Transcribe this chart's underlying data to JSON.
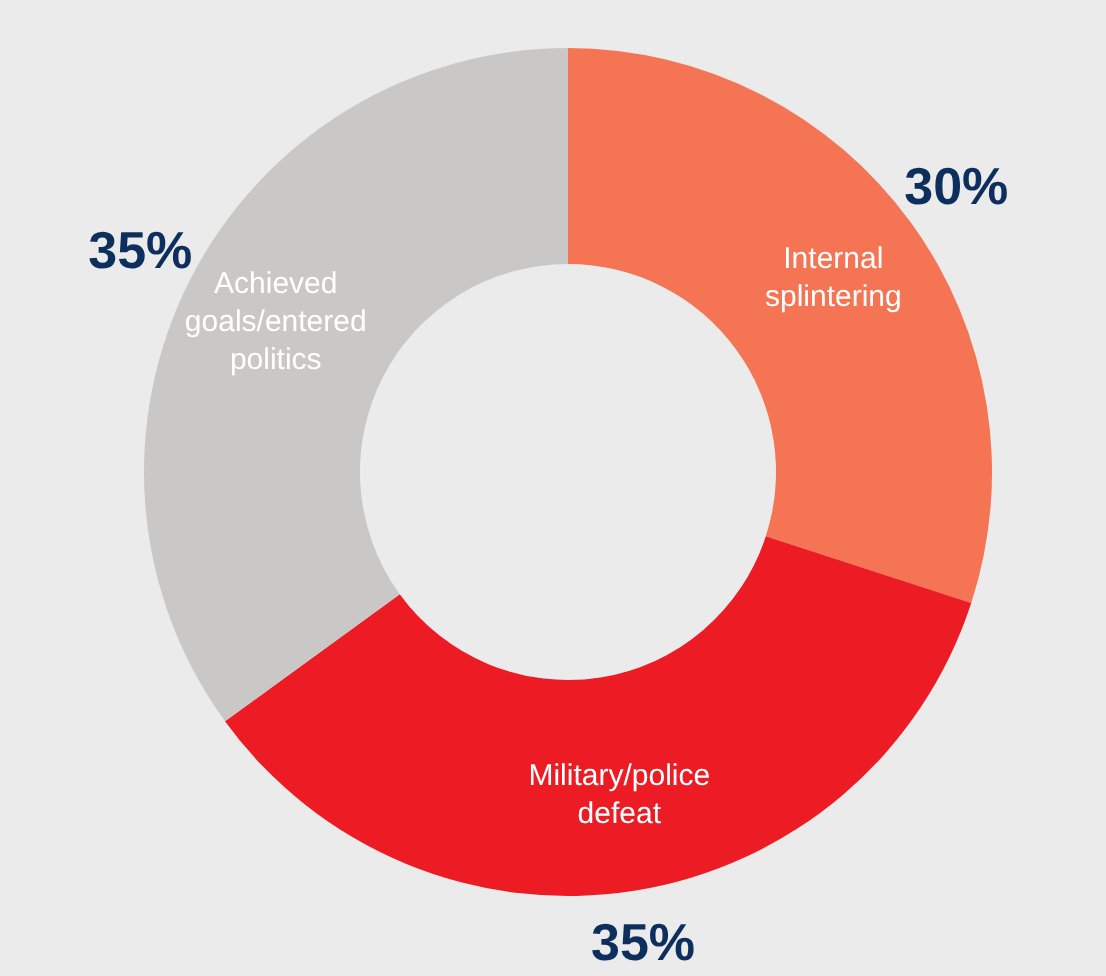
{
  "chart_data": {
    "type": "donut",
    "categories": [
      "Internal splintering",
      "Military/police defeat",
      "Achieved goals/entered politics"
    ],
    "values": [
      30,
      35,
      35
    ],
    "colors": [
      "#f47454",
      "#ed1c24",
      "#c9c8c6"
    ],
    "value_labels": [
      "30%",
      "35%",
      "35%"
    ]
  }
}
